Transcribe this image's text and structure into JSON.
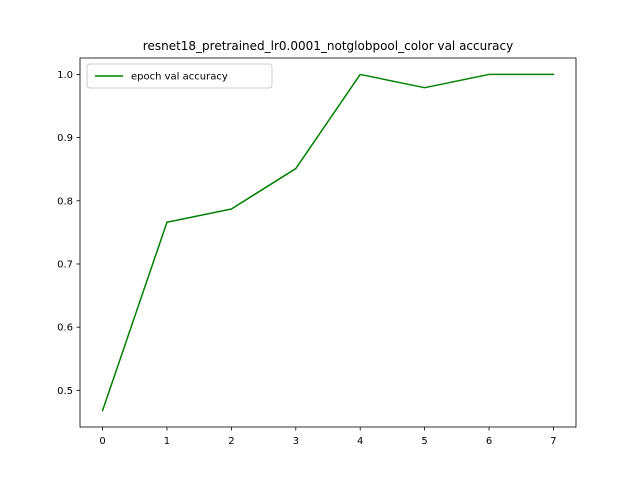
{
  "chart_data": {
    "type": "line",
    "title": "resnet18_pretrained_lr0.0001_notglobpool_color val accuracy",
    "xlabel": "",
    "ylabel": "",
    "x": [
      0,
      1,
      2,
      3,
      4,
      5,
      6,
      7
    ],
    "series": [
      {
        "name": "epoch val accuracy",
        "color": "#008000",
        "values": [
          0.468,
          0.766,
          0.787,
          0.851,
          1.0,
          0.979,
          1.0,
          1.0
        ]
      }
    ],
    "xlim": [
      -0.35,
      7.35
    ],
    "ylim": [
      0.442,
      1.026
    ],
    "xticks": [
      0,
      1,
      2,
      3,
      4,
      5,
      6,
      7
    ],
    "xtick_labels": [
      "0",
      "1",
      "2",
      "3",
      "4",
      "5",
      "6",
      "7"
    ],
    "yticks": [
      0.5,
      0.6,
      0.7,
      0.8,
      0.9,
      1.0
    ],
    "ytick_labels": [
      "0.5",
      "0.6",
      "0.7",
      "0.8",
      "0.9",
      "1.0"
    ],
    "grid": false,
    "legend_position": "upper left"
  }
}
